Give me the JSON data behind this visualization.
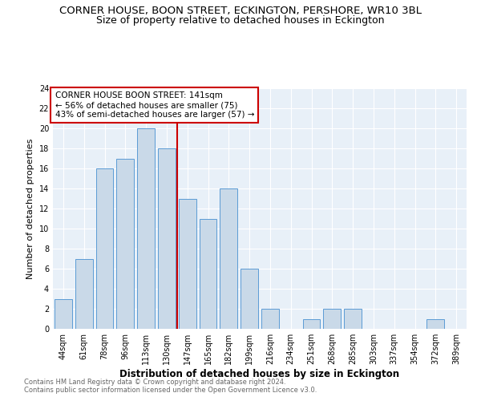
{
  "title": "CORNER HOUSE, BOON STREET, ECKINGTON, PERSHORE, WR10 3BL",
  "subtitle": "Size of property relative to detached houses in Eckington",
  "xlabel": "Distribution of detached houses by size in Eckington",
  "ylabel": "Number of detached properties",
  "bar_labels": [
    "44sqm",
    "61sqm",
    "78sqm",
    "96sqm",
    "113sqm",
    "130sqm",
    "147sqm",
    "165sqm",
    "182sqm",
    "199sqm",
    "216sqm",
    "234sqm",
    "251sqm",
    "268sqm",
    "285sqm",
    "303sqm",
    "337sqm",
    "354sqm",
    "372sqm",
    "389sqm"
  ],
  "bar_values": [
    3,
    7,
    16,
    17,
    20,
    18,
    13,
    11,
    14,
    6,
    2,
    0,
    1,
    2,
    2,
    0,
    0,
    0,
    1,
    0
  ],
  "bar_color": "#c9d9e8",
  "bar_edgecolor": "#5b9bd5",
  "vline_x": 5.5,
  "vline_color": "#cc0000",
  "annotation_line1": "CORNER HOUSE BOON STREET: 141sqm",
  "annotation_line2": "← 56% of detached houses are smaller (75)",
  "annotation_line3": "43% of semi-detached houses are larger (57) →",
  "annotation_box_edgecolor": "#cc0000",
  "ylim": [
    0,
    24
  ],
  "yticks": [
    0,
    2,
    4,
    6,
    8,
    10,
    12,
    14,
    16,
    18,
    20,
    22,
    24
  ],
  "footer_line1": "Contains HM Land Registry data © Crown copyright and database right 2024.",
  "footer_line2": "Contains public sector information licensed under the Open Government Licence v3.0.",
  "background_color": "#e8f0f8",
  "title_fontsize": 9.5,
  "subtitle_fontsize": 9,
  "annotation_fontsize": 7.5,
  "xlabel_fontsize": 8.5,
  "ylabel_fontsize": 8,
  "tick_fontsize": 7,
  "footer_fontsize": 6
}
